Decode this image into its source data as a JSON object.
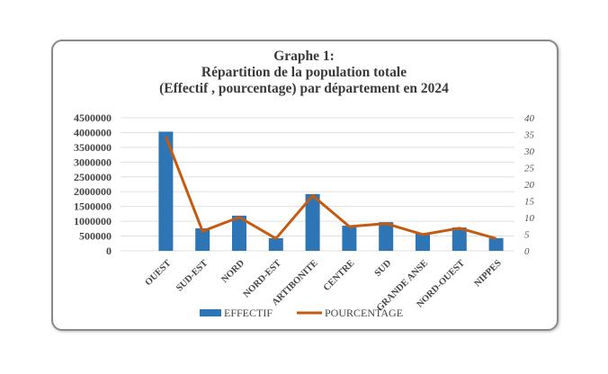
{
  "chart_data": {
    "type": "bar+line",
    "title_lines": [
      "Graphe 1:",
      "Répartition de la population totale",
      "(Effectif , pourcentage) par département en 2024"
    ],
    "categories": [
      "OUEST",
      "SUD-EST",
      "NORD",
      "NORD-EST",
      "ARTIBONITE",
      "CENTRE",
      "SUD",
      "GRANDE ANSE",
      "NORD-OUEST",
      "NIPPES"
    ],
    "series": [
      {
        "name": "EFFECTIF",
        "type": "bar",
        "axis": "left",
        "color": "#2e75b6",
        "values": [
          4030000,
          760000,
          1190000,
          425000,
          1920000,
          850000,
          970000,
          580000,
          790000,
          430000
        ]
      },
      {
        "name": "POURCENTAGE",
        "type": "line",
        "axis": "right",
        "color": "#c55a11",
        "values": [
          34.3,
          5.9,
          10.1,
          3.7,
          16.6,
          7.3,
          8.2,
          4.9,
          6.8,
          3.7
        ]
      }
    ],
    "y_left": {
      "min": 0,
      "max": 4500000,
      "ticks": [
        "0",
        "500000",
        "1000000",
        "1500000",
        "2000000",
        "2500000",
        "3000000",
        "3500000",
        "4000000",
        "4500000"
      ]
    },
    "y_right": {
      "min": 0,
      "max": 40,
      "ticks": [
        "0",
        "5",
        "10",
        "15",
        "20",
        "25",
        "30",
        "35",
        "40"
      ]
    },
    "grid": true,
    "legend": "bottom"
  }
}
